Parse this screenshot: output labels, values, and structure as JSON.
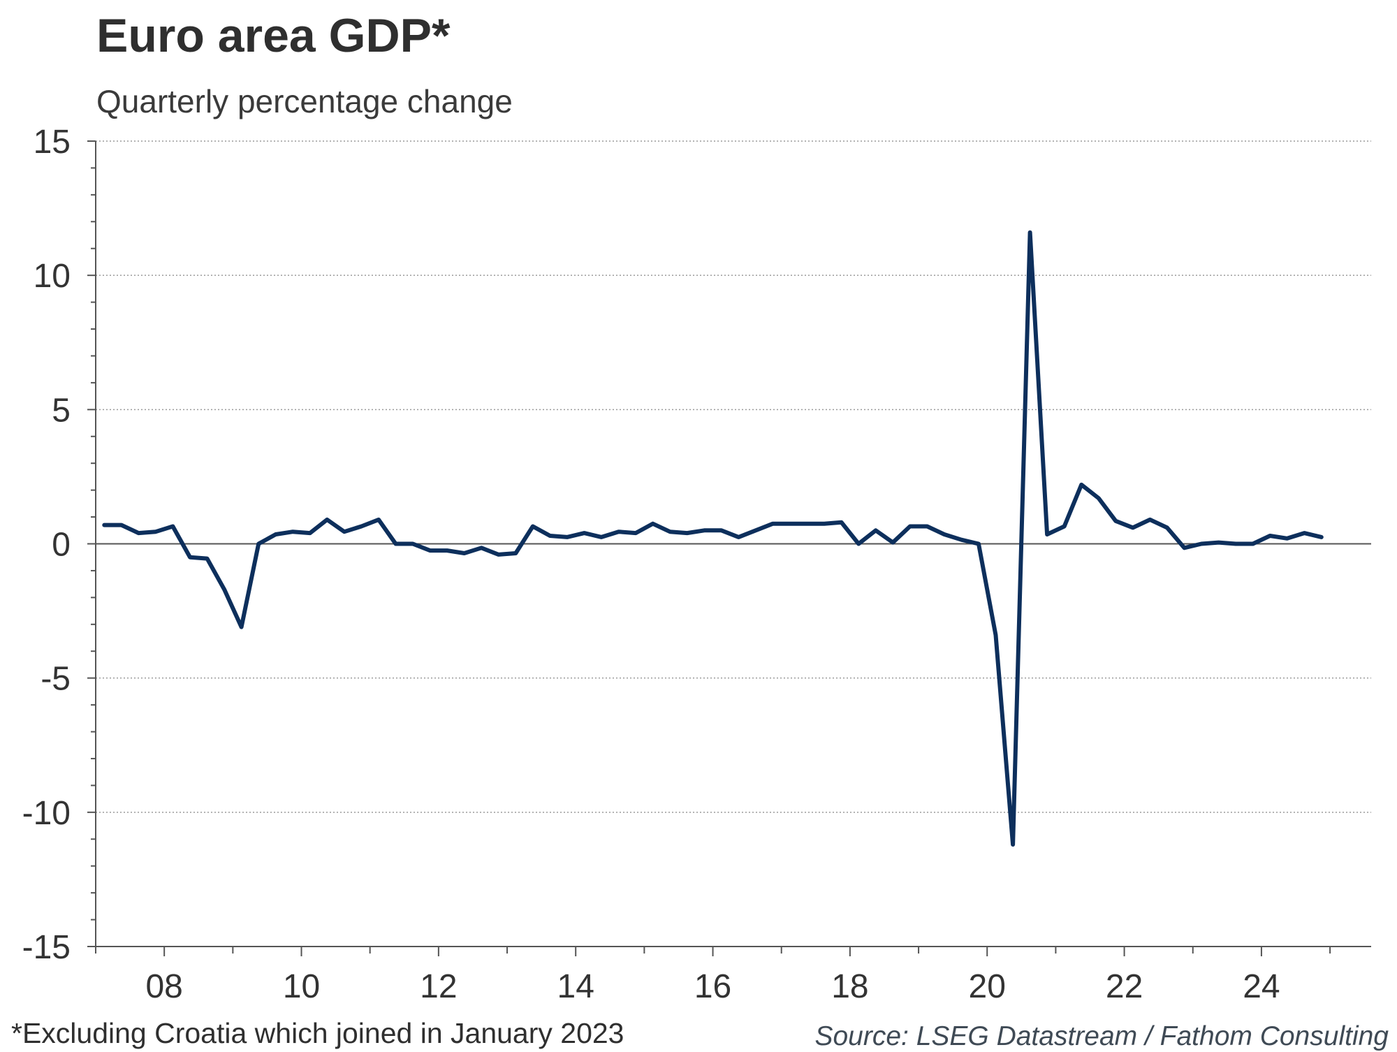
{
  "chart_data": {
    "type": "line",
    "title": "Euro area GDP*",
    "subtitle": "Quarterly percentage change",
    "footnote": "*Excluding Croatia which joined in January 2023",
    "source": "Source: LSEG Datastream / Fathom Consulting",
    "xlabel": "",
    "ylabel": "",
    "ylim": [
      -15,
      15
    ],
    "yticks": [
      15,
      10,
      5,
      0,
      -5,
      -10,
      -15
    ],
    "ytick_labels": [
      "15",
      "10",
      "5",
      "0",
      "-5",
      "-10",
      "-15"
    ],
    "xlim": [
      2007.0,
      2025.6
    ],
    "xticks": [
      2008,
      2010,
      2012,
      2014,
      2016,
      2018,
      2020,
      2022,
      2024
    ],
    "xtick_labels": [
      "08",
      "10",
      "12",
      "14",
      "16",
      "18",
      "20",
      "22",
      "24"
    ],
    "grid": "horizontal dotted",
    "color": "#0d2f5c",
    "series": [
      {
        "name": "Euro area GDP, q/q %",
        "x": [
          2007.125,
          2007.375,
          2007.625,
          2007.875,
          2008.125,
          2008.375,
          2008.625,
          2008.875,
          2009.125,
          2009.375,
          2009.625,
          2009.875,
          2010.125,
          2010.375,
          2010.625,
          2010.875,
          2011.125,
          2011.375,
          2011.625,
          2011.875,
          2012.125,
          2012.375,
          2012.625,
          2012.875,
          2013.125,
          2013.375,
          2013.625,
          2013.875,
          2014.125,
          2014.375,
          2014.625,
          2014.875,
          2015.125,
          2015.375,
          2015.625,
          2015.875,
          2016.125,
          2016.375,
          2016.625,
          2016.875,
          2017.125,
          2017.375,
          2017.625,
          2017.875,
          2018.125,
          2018.375,
          2018.625,
          2018.875,
          2019.125,
          2019.375,
          2019.625,
          2019.875,
          2020.125,
          2020.375,
          2020.625,
          2020.875,
          2021.125,
          2021.375,
          2021.625,
          2021.875,
          2022.125,
          2022.375,
          2022.625,
          2022.875,
          2023.125,
          2023.375,
          2023.625,
          2023.875,
          2024.125,
          2024.375,
          2024.625,
          2024.875
        ],
        "values": [
          0.7,
          0.7,
          0.4,
          0.45,
          0.65,
          -0.5,
          -0.55,
          -1.7,
          -3.1,
          0.0,
          0.35,
          0.45,
          0.4,
          0.9,
          0.45,
          0.65,
          0.9,
          0.0,
          0.0,
          -0.25,
          -0.25,
          -0.35,
          -0.15,
          -0.4,
          -0.35,
          0.65,
          0.3,
          0.25,
          0.4,
          0.25,
          0.45,
          0.4,
          0.75,
          0.45,
          0.4,
          0.5,
          0.5,
          0.25,
          0.5,
          0.75,
          0.75,
          0.75,
          0.75,
          0.8,
          0.0,
          0.5,
          0.05,
          0.65,
          0.65,
          0.35,
          0.15,
          0.0,
          -3.4,
          -11.2,
          11.6,
          0.35,
          0.65,
          2.2,
          1.7,
          0.85,
          0.6,
          0.9,
          0.6,
          -0.15,
          0.0,
          0.05,
          0.0,
          0.0,
          0.3,
          0.2,
          0.4,
          0.25
        ]
      }
    ]
  }
}
